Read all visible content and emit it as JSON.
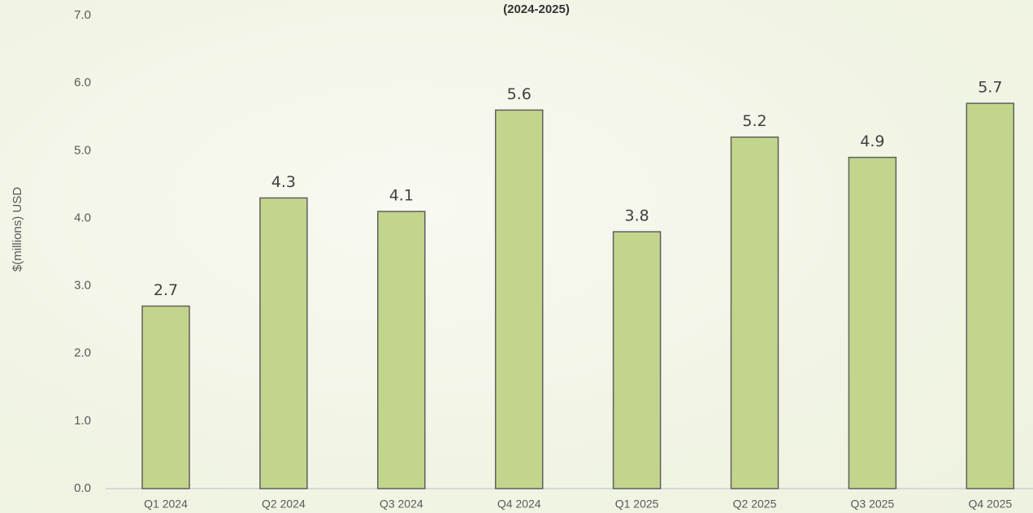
{
  "chart_data": {
    "type": "bar",
    "title": "(2024-2025)",
    "y_label": "$(millions) USD",
    "categories": [
      "Q1 2024",
      "Q2 2024",
      "Q3 2024",
      "Q4 2024",
      "Q1 2025",
      "Q2 2025",
      "Q3 2025",
      "Q4 2025"
    ],
    "values": [
      2.7,
      4.3,
      4.1,
      5.6,
      3.8,
      5.2,
      4.9,
      5.7
    ],
    "color": "#c3d58c",
    "ylim": [
      0,
      7
    ],
    "yticks": [
      {
        "value": 0,
        "label": "0.0"
      },
      {
        "value": 1,
        "label": "1.0"
      },
      {
        "value": 2,
        "label": "2.0"
      },
      {
        "value": 3,
        "label": "3.0"
      },
      {
        "value": 4,
        "label": "4.0"
      },
      {
        "value": 5,
        "label": "5.0"
      },
      {
        "value": 6,
        "label": "6.0"
      },
      {
        "value": 7,
        "label": "7.0"
      }
    ],
    "grid": false
  }
}
